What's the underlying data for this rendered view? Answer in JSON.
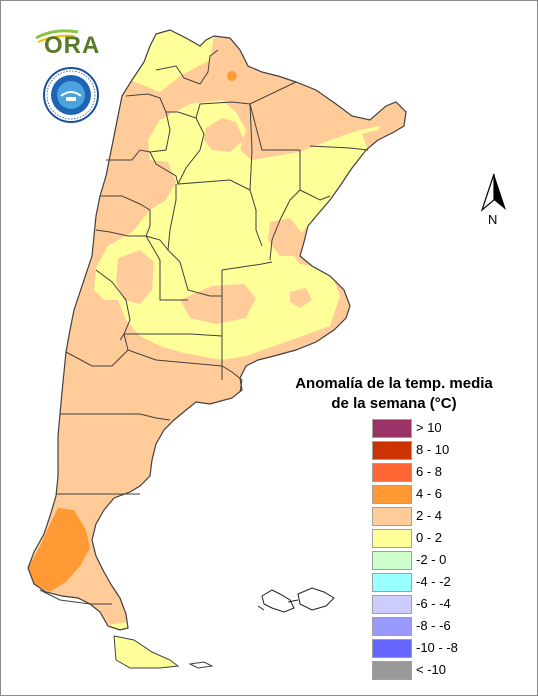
{
  "legend": {
    "title_line1": "Anomalía de la temp. media",
    "title_line2": "de la semana (°C)",
    "items": [
      {
        "label": "> 10",
        "color": "#993366"
      },
      {
        "label": "8 - 10",
        "color": "#cc3300"
      },
      {
        "label": "6 - 8",
        "color": "#ff6633"
      },
      {
        "label": "4 - 6",
        "color": "#ff9933"
      },
      {
        "label": "2 - 4",
        "color": "#ffcc99"
      },
      {
        "label": "0 - 2",
        "color": "#ffff99"
      },
      {
        "label": "-2 - 0",
        "color": "#ccffcc"
      },
      {
        "label": "-4 - -2",
        "color": "#99ffff"
      },
      {
        "label": "-6 - -4",
        "color": "#ccccff"
      },
      {
        "label": "-8 - -6",
        "color": "#9999ff"
      },
      {
        "label": "-10 - -8",
        "color": "#6666ff"
      },
      {
        "label": "< -10",
        "color": "#999999"
      }
    ]
  },
  "logos": {
    "ora_text": "ORA"
  },
  "compass": {
    "label": "N"
  },
  "colors": {
    "border": "#404040",
    "country_outline": "#707070"
  }
}
